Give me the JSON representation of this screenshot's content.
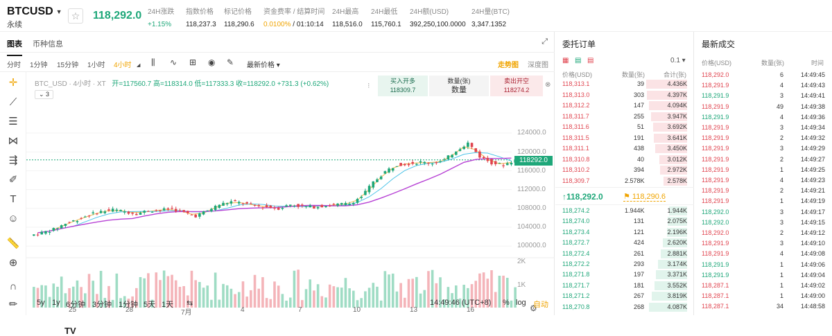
{
  "header": {
    "symbol": "BTCUSD",
    "contract_type": "永续",
    "last_price": "118,292.0",
    "stats": [
      {
        "label": "24H涨跌",
        "value": "+1.15%",
        "green": true
      },
      {
        "label": "指数价格",
        "value": "118,237.3"
      },
      {
        "label": "标记价格",
        "value": "118,290.6"
      },
      {
        "label": "资金费率 / 结算时间",
        "value": "0.0100%",
        "value2": " / 01:10:14"
      },
      {
        "label": "24H最高",
        "value": "118,516.0"
      },
      {
        "label": "24H最低",
        "value": "115,760.1"
      },
      {
        "label": "24H额(USD)",
        "value": "392,250,100.0000"
      },
      {
        "label": "24H量(BTC)",
        "value": "3,347.1352"
      }
    ]
  },
  "tabs": [
    "图表",
    "币种信息"
  ],
  "timeframes": [
    "分时",
    "1分钟",
    "15分钟",
    "1小时",
    "4小时"
  ],
  "price_type": "最新价格",
  "view_modes": [
    "走势图",
    "深度图"
  ],
  "legend": {
    "name": "BTC_USD · 4小时 · XT",
    "text": "开=117560.7  高=118314.0  低=117333.3  收=118292.0  +731.3 (+0.62%)",
    "indicator_count": "3"
  },
  "quick_order": {
    "buy_label": "买入开多",
    "buy_price": "118309.7",
    "qty_label": "数量(张)",
    "qty_placeholder": "数量",
    "sell_label": "卖出开空",
    "sell_price": "118274.2"
  },
  "chart_data": {
    "type": "candlestick",
    "y_ticks": [
      "124000.0",
      "120000.0",
      "116000.0",
      "112000.0",
      "108000.0",
      "104000.0",
      "100000.0"
    ],
    "volume_ticks": [
      "2K",
      "1K"
    ],
    "x_ticks": [
      "25",
      "28",
      "7月",
      "4",
      "7",
      "10",
      "13",
      "16"
    ],
    "current_price": "118292.0",
    "close_approx": [
      102800,
      103500,
      104800,
      105600,
      106600,
      107300,
      107700,
      107300,
      106900,
      107500,
      107600,
      107900,
      107100,
      106400,
      107500,
      108800,
      109400,
      109100,
      108500,
      108300,
      108000,
      108800,
      108400,
      108300,
      108600,
      108800,
      109000,
      110500,
      113500,
      115800,
      117300,
      117500,
      117800,
      117600,
      118200,
      120300,
      121900,
      119000,
      117700,
      117200,
      118292
    ]
  },
  "bottom_bar": {
    "ranges": [
      "5y",
      "1y",
      "6分钟",
      "3分钟",
      "1分钟",
      "5天",
      "1天"
    ],
    "clock": "14:49:46 (UTC+8)",
    "percent": "%",
    "log": "log",
    "auto": "自动"
  },
  "orderbook": {
    "title": "委托订单",
    "precision": "0.1",
    "headers": [
      "价格(USD)",
      "数量(张)",
      "合计(张)"
    ],
    "asks": [
      {
        "price": "118,313.1",
        "qty": "39",
        "total": "4.436K",
        "depth": 0.95
      },
      {
        "price": "118,313.0",
        "qty": "303",
        "total": "4.397K",
        "depth": 0.94
      },
      {
        "price": "118,312.2",
        "qty": "147",
        "total": "4.094K",
        "depth": 0.88
      },
      {
        "price": "118,311.7",
        "qty": "255",
        "total": "3.947K",
        "depth": 0.84
      },
      {
        "price": "118,311.6",
        "qty": "51",
        "total": "3.692K",
        "depth": 0.79
      },
      {
        "price": "118,311.5",
        "qty": "191",
        "total": "3.641K",
        "depth": 0.78
      },
      {
        "price": "118,311.1",
        "qty": "438",
        "total": "3.450K",
        "depth": 0.74
      },
      {
        "price": "118,310.8",
        "qty": "40",
        "total": "3.012K",
        "depth": 0.64
      },
      {
        "price": "118,310.2",
        "qty": "394",
        "total": "2.972K",
        "depth": 0.63
      },
      {
        "price": "118,309.7",
        "qty": "2.578K",
        "total": "2.578K",
        "depth": 0.55
      }
    ],
    "last_price": "↑118,292.0",
    "mark_price": "118,290.6",
    "bids": [
      {
        "price": "118,274.2",
        "qty": "1.944K",
        "total": "1.944K",
        "depth": 0.42
      },
      {
        "price": "118,274.0",
        "qty": "131",
        "total": "2.075K",
        "depth": 0.45
      },
      {
        "price": "118,273.4",
        "qty": "121",
        "total": "2.196K",
        "depth": 0.47
      },
      {
        "price": "118,272.7",
        "qty": "424",
        "total": "2.620K",
        "depth": 0.56
      },
      {
        "price": "118,272.4",
        "qty": "261",
        "total": "2.881K",
        "depth": 0.62
      },
      {
        "price": "118,272.2",
        "qty": "293",
        "total": "3.174K",
        "depth": 0.68
      },
      {
        "price": "118,271.8",
        "qty": "197",
        "total": "3.371K",
        "depth": 0.72
      },
      {
        "price": "118,271.7",
        "qty": "181",
        "total": "3.552K",
        "depth": 0.76
      },
      {
        "price": "118,271.2",
        "qty": "267",
        "total": "3.819K",
        "depth": 0.82
      },
      {
        "price": "118,270.8",
        "qty": "268",
        "total": "4.087K",
        "depth": 0.88
      }
    ]
  },
  "trades": {
    "title": "最新成交",
    "headers": [
      "价格(USD)",
      "数量(张)",
      "时间"
    ],
    "rows": [
      {
        "price": "118,292.0",
        "qty": "6",
        "time": "14:49:45",
        "side": "dn"
      },
      {
        "price": "118,291.9",
        "qty": "4",
        "time": "14:49:43",
        "side": "dn"
      },
      {
        "price": "118,291.9",
        "qty": "3",
        "time": "14:49:41",
        "side": "up"
      },
      {
        "price": "118,291.9",
        "qty": "49",
        "time": "14:49:38",
        "side": "dn"
      },
      {
        "price": "118,291.9",
        "qty": "4",
        "time": "14:49:36",
        "side": "up"
      },
      {
        "price": "118,291.9",
        "qty": "3",
        "time": "14:49:34",
        "side": "dn"
      },
      {
        "price": "118,291.9",
        "qty": "2",
        "time": "14:49:32",
        "side": "dn"
      },
      {
        "price": "118,291.9",
        "qty": "3",
        "time": "14:49:29",
        "side": "dn"
      },
      {
        "price": "118,291.9",
        "qty": "2",
        "time": "14:49:27",
        "side": "dn"
      },
      {
        "price": "118,291.9",
        "qty": "1",
        "time": "14:49:25",
        "side": "dn"
      },
      {
        "price": "118,291.9",
        "qty": "4",
        "time": "14:49:23",
        "side": "dn"
      },
      {
        "price": "118,291.9",
        "qty": "2",
        "time": "14:49:21",
        "side": "dn"
      },
      {
        "price": "118,291.9",
        "qty": "1",
        "time": "14:49:19",
        "side": "dn"
      },
      {
        "price": "118,292.0",
        "qty": "3",
        "time": "14:49:17",
        "side": "up"
      },
      {
        "price": "118,292.0",
        "qty": "3",
        "time": "14:49:15",
        "side": "up"
      },
      {
        "price": "118,292.0",
        "qty": "2",
        "time": "14:49:12",
        "side": "dn"
      },
      {
        "price": "118,291.9",
        "qty": "3",
        "time": "14:49:10",
        "side": "dn"
      },
      {
        "price": "118,291.9",
        "qty": "4",
        "time": "14:49:08",
        "side": "dn"
      },
      {
        "price": "118,291.9",
        "qty": "1",
        "time": "14:49:06",
        "side": "up"
      },
      {
        "price": "118,291.9",
        "qty": "1",
        "time": "14:49:04",
        "side": "up"
      },
      {
        "price": "118,287.1",
        "qty": "1",
        "time": "14:49:02",
        "side": "dn"
      },
      {
        "price": "118,287.1",
        "qty": "1",
        "time": "14:49:00",
        "side": "dn"
      },
      {
        "price": "118,287.1",
        "qty": "34",
        "time": "14:48:58",
        "side": "dn"
      }
    ]
  },
  "colors": {
    "up": "#1ea779",
    "down": "#e0444f",
    "accent": "#f0a400",
    "ma_short": "#f6b94a",
    "ma_mid": "#4cc3e8",
    "ma_long": "#b640d4"
  }
}
